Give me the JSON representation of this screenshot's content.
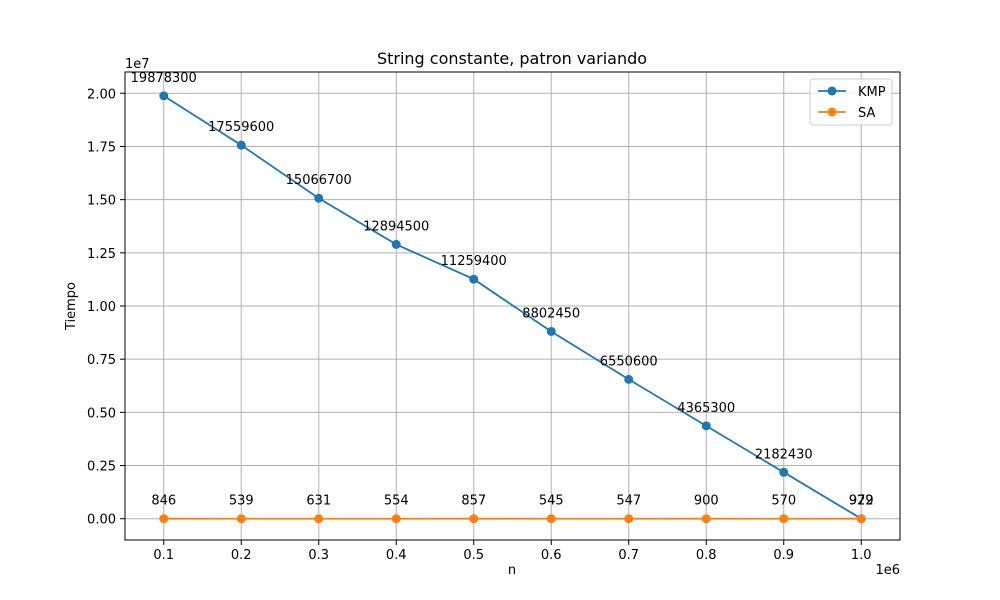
{
  "chart_data": {
    "type": "line",
    "title": "String constante, patron variando",
    "xlabel": "n",
    "ylabel": "Tiempo",
    "x_offset_label": "1e6",
    "y_offset_label": "1e7",
    "x": [
      100000,
      200000,
      300000,
      400000,
      500000,
      600000,
      700000,
      800000,
      900000,
      1000000
    ],
    "xlim": [
      50000,
      1050000
    ],
    "ylim": [
      -1000000,
      21000000
    ],
    "x_ticks": [
      100000,
      200000,
      300000,
      400000,
      500000,
      600000,
      700000,
      800000,
      900000,
      1000000
    ],
    "x_tick_labels": [
      "0.1",
      "0.2",
      "0.3",
      "0.4",
      "0.5",
      "0.6",
      "0.7",
      "0.8",
      "0.9",
      "1.0"
    ],
    "y_ticks": [
      0,
      2500000,
      5000000,
      7500000,
      10000000,
      12500000,
      15000000,
      17500000,
      20000000
    ],
    "y_tick_labels": [
      "0.00",
      "0.25",
      "0.50",
      "0.75",
      "1.00",
      "1.25",
      "1.50",
      "1.75",
      "2.00"
    ],
    "grid": true,
    "legend_position": "top-right",
    "series": [
      {
        "name": "KMP",
        "color": "#1f77b4",
        "values": [
          19878300,
          17559600,
          15066700,
          12894500,
          11259400,
          8802450,
          6550600,
          4365300,
          2182430,
          929
        ],
        "labels": [
          "19878300",
          "17559600",
          "15066700",
          "12894500",
          "11259400",
          "8802450",
          "6550600",
          "4365300",
          "2182430",
          "929"
        ]
      },
      {
        "name": "SA",
        "color": "#ff7f0e",
        "values": [
          846,
          539,
          631,
          554,
          857,
          545,
          547,
          900,
          570,
          972
        ],
        "labels": [
          "846",
          "539",
          "631",
          "554",
          "857",
          "545",
          "547",
          "900",
          "570",
          "972"
        ]
      }
    ]
  }
}
